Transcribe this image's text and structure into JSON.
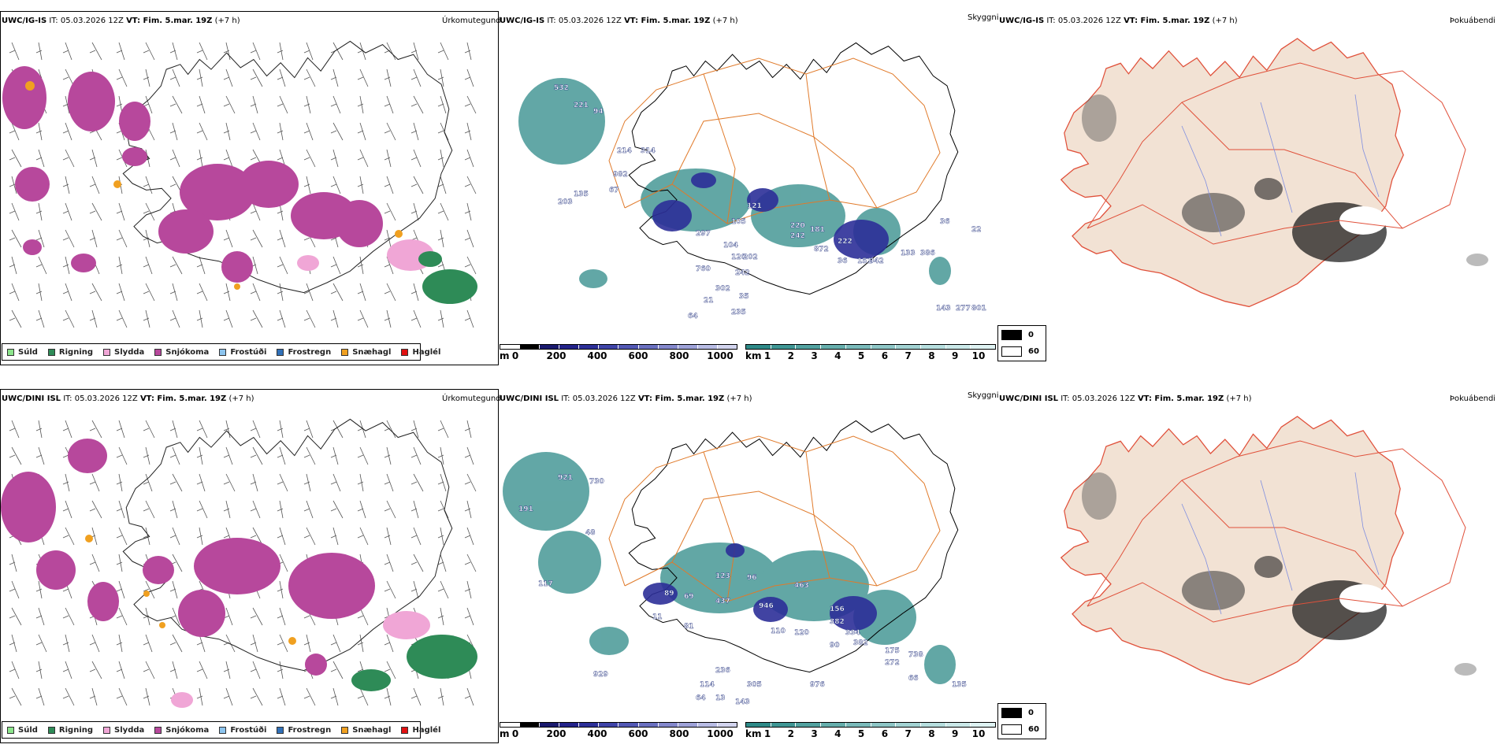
{
  "colors": {
    "precip_bg": "#ffffff",
    "snow": "#b7489c",
    "rain": "#2e8b57",
    "sleet": "#f0a6d6",
    "snow_pellets": "#f0a020",
    "cloud_teal": "#2e8a88",
    "cloud_blue": "#2c2f98",
    "road": "#e07a2a",
    "land_vis": "#f2e2d4",
    "road_vis": "#e0503a",
    "river": "#7f8ee0"
  },
  "rows": [
    {
      "model": "UWC/IG-IS",
      "it_text": "IT: 05.03.2026 12Z",
      "vt_label": "VT: Fim. 5.mar. 19Z",
      "offset": "(+7 h)",
      "cloud_numbers": [
        "532",
        "221",
        "94",
        "214",
        "314",
        "982",
        "67",
        "135",
        "203",
        "121",
        "105",
        "220",
        "104",
        "120",
        "297",
        "202",
        "181",
        "242",
        "872",
        "222",
        "36",
        "942",
        "151",
        "133",
        "386",
        "760",
        "242",
        "302",
        "21",
        "35",
        "235",
        "277",
        "801",
        "64",
        "143",
        "36",
        "22"
      ]
    },
    {
      "model": "UWC/DINI ISL",
      "it_text": "IT: 05.03.2026 12Z",
      "vt_label": "VT: Fim. 5.mar. 19Z",
      "offset": "(+7 h)",
      "cloud_numbers": [
        "921",
        "730",
        "191",
        "48",
        "117",
        "123",
        "96",
        "463",
        "437",
        "89",
        "69",
        "946",
        "11",
        "81",
        "156",
        "382",
        "110",
        "120",
        "334",
        "382",
        "90",
        "175",
        "738",
        "272",
        "236",
        "114",
        "305",
        "976",
        "66",
        "135",
        "929",
        "64",
        "13",
        "143"
      ]
    }
  ],
  "panel_titles": {
    "precip": "Úrkomutegund",
    "cloud": "Skyggni",
    "visibility": "Þokuábendi"
  },
  "precip_legend": [
    {
      "label": "Súld",
      "color": "#8ce58c"
    },
    {
      "label": "Rigning",
      "color": "#2e8b57"
    },
    {
      "label": "Slydda",
      "color": "#f0a6d6"
    },
    {
      "label": "Snjókoma",
      "color": "#b7489c"
    },
    {
      "label": "Frostúði",
      "color": "#8cc4ee"
    },
    {
      "label": "Frostregn",
      "color": "#3070b8"
    },
    {
      "label": "Snæhagl",
      "color": "#f0a020"
    },
    {
      "label": "Haglél",
      "color": "#e01010"
    }
  ],
  "height_scale": {
    "unit": "m",
    "ticks": [
      "0",
      "200",
      "400",
      "600",
      "800",
      "1000"
    ],
    "colors": [
      "#ffffff",
      "#000000",
      "#1a1a6e",
      "#23238a",
      "#2c2f98",
      "#3f44a8",
      "#5258b4",
      "#6a70c0",
      "#8488cc",
      "#9ea2d8",
      "#b8bce4",
      "#d2d4ee"
    ]
  },
  "km_scale": {
    "unit": "km",
    "ticks": [
      "1",
      "2",
      "3",
      "4",
      "5",
      "6",
      "7",
      "8",
      "9",
      "10"
    ],
    "colors": [
      "#2e8a88",
      "#3f9694",
      "#52a2a0",
      "#66aeac",
      "#7ababa",
      "#8ec6c6",
      "#a2d2d2",
      "#b6dede",
      "#cae8e8",
      "#def2f2"
    ]
  },
  "vis_legend": [
    {
      "label": "0",
      "color": "#000000"
    },
    {
      "label": "60",
      "color": "#ffffff"
    }
  ]
}
